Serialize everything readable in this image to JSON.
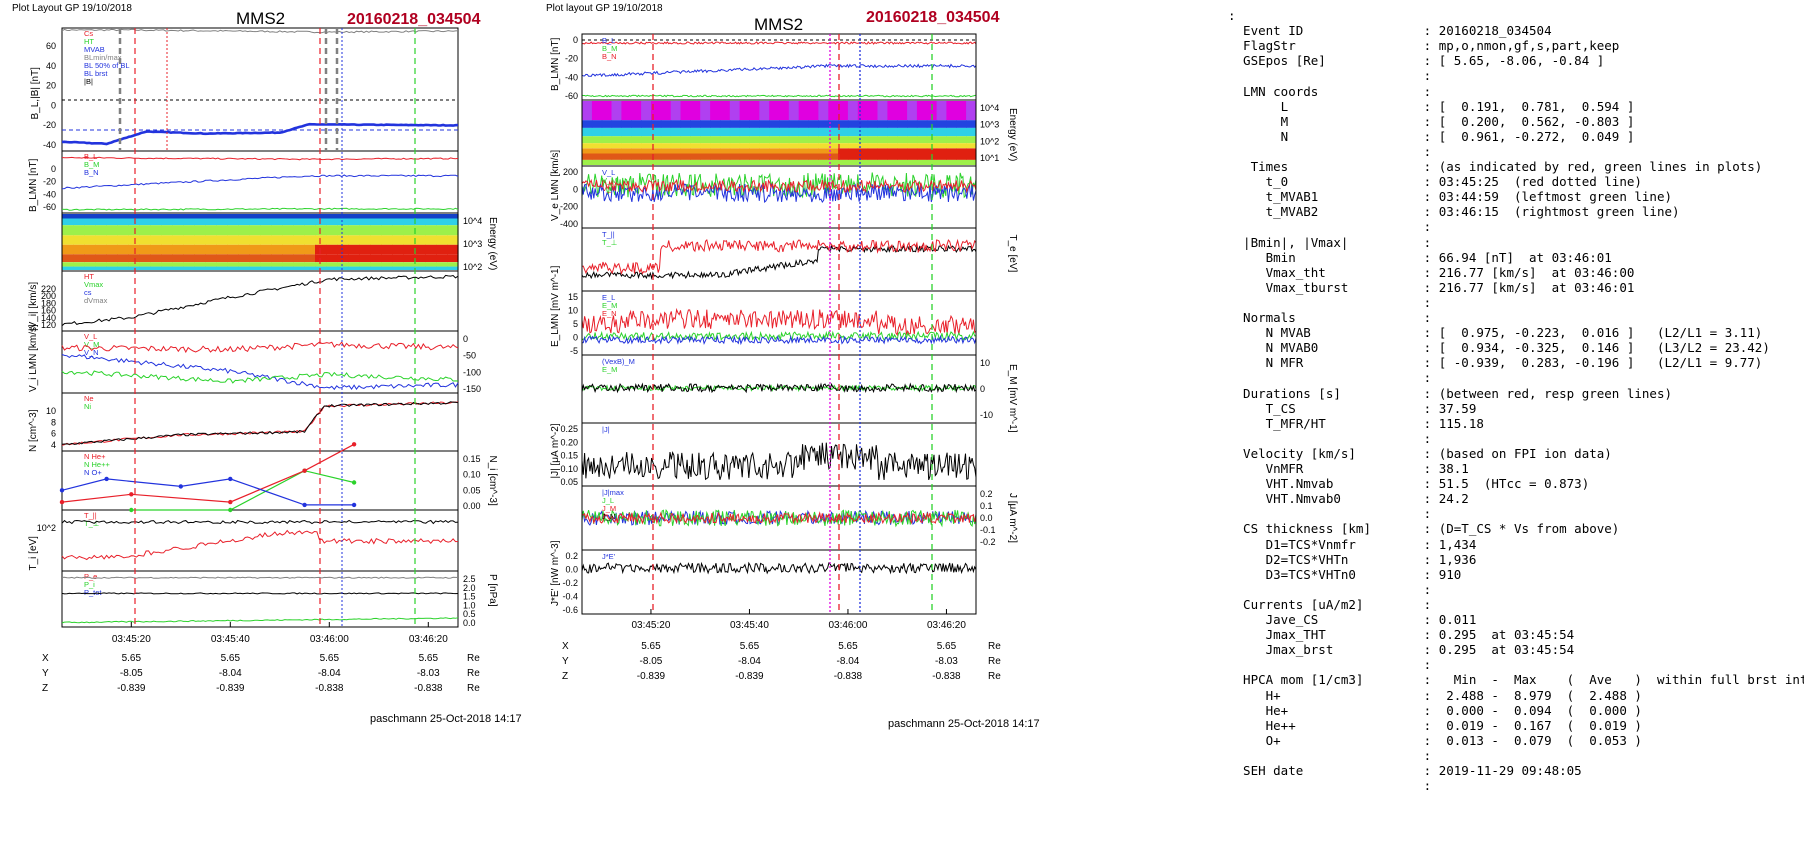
{
  "colors": {
    "red": "#e8202a",
    "green": "#2bd22b",
    "blue": "#2233dd",
    "black": "#000000",
    "gray": "#808080",
    "title_red": "#b00020",
    "magenta": "#e000e0"
  },
  "left": {
    "header": "Plot Layout GP 19/10/2018",
    "title": "MMS2",
    "event": "20160218_034504",
    "footer": "paschmann 25-Oct-2018 14:17",
    "xticks": [
      "03:45:20",
      "03:45:40",
      "03:46:00",
      "03:46:20"
    ],
    "pos_rows": [
      {
        "label": "X",
        "vals": [
          "5.65",
          "5.65",
          "5.65",
          "5.65"
        ],
        "unit": "Re"
      },
      {
        "label": "Y",
        "vals": [
          "-8.05",
          "-8.04",
          "-8.04",
          "-8.03"
        ],
        "unit": "Re"
      },
      {
        "label": "Z",
        "vals": [
          "-0.839",
          "-0.839",
          "-0.838",
          "-0.838"
        ],
        "unit": "Re"
      }
    ],
    "panels": [
      {
        "ylabel": "B_L,|B| [nT]",
        "yticks": [
          "60",
          "40",
          "20",
          "0",
          "-20",
          "-40"
        ],
        "legend": [
          "Cs",
          "HT",
          "MVAB",
          "BLmin/max",
          "BL 50% of BL",
          "BL brst",
          "|B|"
        ]
      },
      {
        "ylabel": "B_LMN [nT]",
        "yticks": [
          "0",
          "-20",
          "-40",
          "-60"
        ],
        "legend": [
          "B_L",
          "B_M",
          "B_N"
        ]
      },
      {
        "ylabel": "",
        "yticks_right": [
          "10^4",
          "10^3",
          "10^2"
        ],
        "ylabel_right": "Energy (eV)"
      },
      {
        "ylabel": "|V_i| [km/s]",
        "yticks": [
          "220",
          "200",
          "180",
          "160",
          "140",
          "120"
        ],
        "legend": [
          "HT",
          "Vmax",
          "cs",
          "dVmax"
        ]
      },
      {
        "ylabel": "V_i LMN [km/s]",
        "yticks_right": [
          "0",
          "-50",
          "-100",
          "-150"
        ],
        "legend": [
          "V_L",
          "V_M",
          "V_N"
        ]
      },
      {
        "ylabel": "N [cm^-3]",
        "yticks": [
          "10",
          "8",
          "6",
          "4"
        ],
        "legend": [
          "Ne",
          "Ni"
        ]
      },
      {
        "ylabel_right": "N_i [cm^-3]",
        "yticks_right": [
          "0.15",
          "0.10",
          "0.05",
          "0.00"
        ],
        "legend": [
          "N He+",
          "N He++",
          "N O+"
        ]
      },
      {
        "ylabel": "T_i [eV]",
        "yticks": [
          "10^2"
        ],
        "legend": [
          "T_||",
          "T_⊥"
        ]
      },
      {
        "ylabel_right": "P [nPa]",
        "yticks_right": [
          "2.5",
          "2.0",
          "1.5",
          "1.0",
          "0.5",
          "0.0"
        ],
        "legend": [
          "P_e",
          "P_i",
          "P_tot"
        ]
      }
    ]
  },
  "middle": {
    "header": "Plot layout GP 19/10/2018",
    "title": "MMS2",
    "event": "20160218_034504",
    "footer": "paschmann 25-Oct-2018 14:17",
    "xticks": [
      "03:45:20",
      "03:45:40",
      "03:46:00",
      "03:46:20"
    ],
    "pos_rows": [
      {
        "label": "X",
        "vals": [
          "5.65",
          "5.65",
          "5.65",
          "5.65"
        ],
        "unit": "Re"
      },
      {
        "label": "Y",
        "vals": [
          "-8.05",
          "-8.04",
          "-8.04",
          "-8.03"
        ],
        "unit": "Re"
      },
      {
        "label": "Z",
        "vals": [
          "-0.839",
          "-0.839",
          "-0.838",
          "-0.838"
        ],
        "unit": "Re"
      }
    ],
    "panels": [
      {
        "ylabel": "B_LMN [nT]",
        "yticks": [
          "0",
          "-20",
          "-40",
          "-60"
        ],
        "legend": [
          "B_L",
          "B_M",
          "B_N"
        ]
      },
      {
        "ylabel_right": "Energy (eV)",
        "yticks_right": [
          "10^4",
          "10^3",
          "10^2",
          "10^1"
        ]
      },
      {
        "ylabel": "V_e LMN [km/s]",
        "yticks": [
          "200",
          "0",
          "-200",
          "-400"
        ],
        "legend": [
          "V_L",
          "V_M",
          "V_N"
        ]
      },
      {
        "ylabel_right": "T_e [eV]",
        "legend": [
          "T_||",
          "T_⊥"
        ]
      },
      {
        "ylabel": "E_LMN [mV m^-1]",
        "yticks": [
          "15",
          "10",
          "5",
          "0",
          "-5"
        ],
        "legend": [
          "E_L",
          "E_M",
          "E_N"
        ]
      },
      {
        "ylabel_right": "E_M [mV m^-1]",
        "yticks_right": [
          "10",
          "0",
          "-10"
        ],
        "legend": [
          "(VexB)_M",
          "E_M"
        ]
      },
      {
        "ylabel": "|J| [μA m^-2]",
        "yticks": [
          "0.25",
          "0.20",
          "0.15",
          "0.10",
          "0.05"
        ],
        "legend": [
          "|J|"
        ]
      },
      {
        "ylabel_right": "J [μA m^-2]",
        "yticks_right": [
          "0.2",
          "0.1",
          "0.0",
          "-0.1",
          "-0.2"
        ],
        "legend": [
          "|J|max",
          "J_L",
          "J_M",
          "J_N"
        ]
      },
      {
        "ylabel": "J*E' [nW m^-3]",
        "yticks": [
          "0.2",
          "0.0",
          "-0.2",
          "-0.4",
          "-0.6"
        ],
        "legend": [
          "J*E'"
        ]
      }
    ]
  },
  "info_lines": [
    ":",
    "  Event ID                : 20160218_034504",
    "  FlagStr                 : mp,o,nmon,gf,s,part,keep",
    "  GSEpos [Re]             : [ 5.65, -8.06, -0.84 ]",
    "                          :",
    "  LMN coords              :",
    "       L                  : [  0.191,  0.781,  0.594 ]",
    "       M                  : [  0.200,  0.562, -0.803 ]",
    "       N                  : [  0.961, -0.272,  0.049 ]",
    "                          :",
    "   Times                  : (as indicated by red, green lines in plots)",
    "     t_0                  : 03:45:25  (red dotted line)",
    "     t_MVAB1              : 03:44:59  (leftmost green line)",
    "     t_MVAB2              : 03:46:15  (rightmost green line)",
    "                          :",
    "  |Bmin|, |Vmax|          :",
    "     Bmin                 : 66.94 [nT]  at 03:46:01",
    "     Vmax_tht             : 216.77 [km/s]  at 03:46:00",
    "     Vmax_tburst          : 216.77 [km/s]  at 03:46:01",
    "                          :",
    "  Normals                 :",
    "     N MVAB               : [  0.975, -0.223,  0.016 ]   (L2/L1 = 3.11)",
    "     N MVAB0              : [  0.934, -0.325,  0.146 ]   (L3/L2 = 23.42)",
    "     N MFR                : [ -0.939,  0.283, -0.196 ]   (L2/L1 = 9.77)",
    "                          :",
    "  Durations [s]           : (between red, resp green lines)",
    "     T_CS                 : 37.59",
    "     T_MFR/HT             : 115.18",
    "                          :",
    "  Velocity [km/s]         : (based on FPI ion data)",
    "     VnMFR                : 38.1",
    "     VHT.Nmvab            : 51.5  (HTcc = 0.873)",
    "     VHT.Nmvab0           : 24.2",
    "                          :",
    "  CS thickness [km]       : (D=T_CS * Vs from above)",
    "     D1=TCS*Vnmfr         : 1,434",
    "     D2=TCS*VHTn          : 1,936",
    "     D3=TCS*VHTn0         : 910",
    "                          :",
    "  Currents [uA/m2]        :",
    "     Jave_CS              : 0.011",
    "     Jmax_THT             : 0.295  at 03:45:54",
    "     Jmax_brst            : 0.295  at 03:45:54",
    "                          :",
    "  HPCA mom [1/cm3]        :   Min  -  Max    (  Ave   )  within full brst int",
    "     H+                   :  2.488 -  8.979  (  2.488 )",
    "     He+                  :  0.000 -  0.094  (  0.000 )",
    "     He++                 :  0.019 -  0.167  (  0.019 )",
    "     O+                   :  0.013 -  0.079  (  0.053 )",
    "                          :",
    "  SEH date                : 2019-11-29 09:48:05",
    "                          :"
  ],
  "chart_data": [
    {
      "type": "line",
      "title": "MMS2",
      "subtitle": "20160218_034504",
      "xlabel": "",
      "x_range": [
        "03:45:06",
        "03:46:26"
      ],
      "panels": [
        {
          "ylabel": "B_L,|B| [nT]",
          "ylim": [
            -50,
            70
          ],
          "series": [
            {
              "name": "|B|",
              "x": [
                "03:45:06",
                "03:45:20",
                "03:45:40",
                "03:46:00",
                "03:46:26"
              ],
              "values": [
                68,
                68,
                67,
                66,
                67
              ]
            },
            {
              "name": "BL brst",
              "x": [
                "03:45:06",
                "03:45:15",
                "03:45:23",
                "03:45:35",
                "03:45:50",
                "03:45:56",
                "03:46:26"
              ],
              "values": [
                -41,
                -43,
                -31,
                -33,
                -32,
                -24,
                -25
              ]
            }
          ]
        },
        {
          "ylabel": "B_LMN [nT]",
          "ylim": [
            -70,
            5
          ],
          "series": [
            {
              "name": "B_L",
              "x": [
                "03:45:06",
                "03:45:56",
                "03:46:26"
              ],
              "values": [
                -40,
                -25,
                -25
              ]
            },
            {
              "name": "B_M",
              "x": [
                "03:45:06",
                "03:45:56",
                "03:46:26"
              ],
              "values": [
                -3,
                -5,
                -4
              ]
            },
            {
              "name": "B_N",
              "x": [
                "03:45:06",
                "03:45:56",
                "03:46:26"
              ],
              "values": [
                -66,
                -65,
                -65
              ]
            }
          ]
        },
        {
          "ylabel": "|V_i| [km/s]",
          "ylim": [
            110,
            220
          ],
          "series": [
            {
              "name": "|V|",
              "x": [
                "03:45:06",
                "03:45:20",
                "03:45:40",
                "03:46:00",
                "03:46:26"
              ],
              "values": [
                122,
                135,
                172,
                205,
                210
              ]
            }
          ]
        },
        {
          "ylabel": "V_i LMN [km/s]",
          "ylim": [
            -175,
            10
          ],
          "series": [
            {
              "name": "V_L",
              "x": [
                "03:45:06",
                "03:45:40",
                "03:46:00",
                "03:46:26"
              ],
              "values": [
                -40,
                -45,
                -30,
                -40
              ]
            },
            {
              "name": "V_M",
              "x": [
                "03:45:06",
                "03:45:40",
                "03:46:00",
                "03:46:26"
              ],
              "values": [
                -60,
                -110,
                -160,
                -150
              ]
            },
            {
              "name": "V_N",
              "x": [
                "03:45:06",
                "03:45:40",
                "03:46:00",
                "03:46:26"
              ],
              "values": [
                -110,
                -140,
                -120,
                -135
              ]
            }
          ]
        },
        {
          "ylabel": "N [cm^-3]",
          "ylim": [
            2,
            11
          ],
          "series": [
            {
              "name": "Ne",
              "x": [
                "03:45:06",
                "03:45:30",
                "03:45:55",
                "03:45:59",
                "03:46:26"
              ],
              "values": [
                3.0,
                4.5,
                5.0,
                9.0,
                9.5
              ]
            },
            {
              "name": "Ni",
              "x": [
                "03:45:06",
                "03:45:30",
                "03:45:55",
                "03:45:59",
                "03:46:26"
              ],
              "values": [
                3.0,
                4.5,
                5.0,
                9.0,
                9.5
              ]
            }
          ]
        },
        {
          "ylabel": "N_i [cm^-3]",
          "ylim": [
            0,
            0.15
          ],
          "series": [
            {
              "name": "N He+",
              "x": [
                "03:45:20",
                "03:45:40",
                "03:45:55",
                "03:46:05"
              ],
              "values": [
                0.0,
                0.0,
                0.1,
                0.07
              ]
            },
            {
              "name": "N He++",
              "x": [
                "03:45:06",
                "03:45:20",
                "03:45:40",
                "03:45:55",
                "03:46:05"
              ],
              "values": [
                0.02,
                0.04,
                0.02,
                0.1,
                0.167
              ]
            },
            {
              "name": "N O+",
              "x": [
                "03:45:06",
                "03:45:15",
                "03:45:30",
                "03:45:40",
                "03:45:55",
                "03:46:05"
              ],
              "values": [
                0.05,
                0.079,
                0.06,
                0.079,
                0.013,
                0.013
              ]
            }
          ]
        },
        {
          "ylabel": "P [nPa]",
          "ylim": [
            0,
            2.5
          ],
          "series": [
            {
              "name": "P_tot",
              "x": [
                "03:45:06",
                "03:46:26"
              ],
              "values": [
                2.2,
                2.2
              ]
            },
            {
              "name": "P_i",
              "x": [
                "03:45:06",
                "03:46:26"
              ],
              "values": [
                1.5,
                1.5
              ]
            },
            {
              "name": "P_e",
              "x": [
                "03:45:06",
                "03:46:26"
              ],
              "values": [
                0.2,
                0.4
              ]
            }
          ]
        }
      ]
    },
    {
      "type": "line",
      "title": "MMS2",
      "subtitle": "20160218_034504",
      "x_range": [
        "03:45:06",
        "03:46:26"
      ],
      "panels": [
        {
          "ylabel": "B_LMN [nT]",
          "ylim": [
            -70,
            5
          ]
        },
        {
          "ylabel": "V_e LMN [km/s]",
          "ylim": [
            -420,
            220
          ]
        },
        {
          "ylabel": "T_e [eV]"
        },
        {
          "ylabel": "E_LMN [mV m^-1]",
          "ylim": [
            -7,
            16
          ]
        },
        {
          "ylabel": "E_M [mV m^-1]",
          "ylim": [
            -15,
            15
          ]
        },
        {
          "ylabel": "|J| [μA m^-2]",
          "ylim": [
            0,
            0.3
          ]
        },
        {
          "ylabel": "J [μA m^-2]",
          "ylim": [
            -0.25,
            0.25
          ]
        },
        {
          "ylabel": "J*E' [nW m^-3]",
          "ylim": [
            -0.7,
            0.25
          ]
        }
      ]
    }
  ]
}
